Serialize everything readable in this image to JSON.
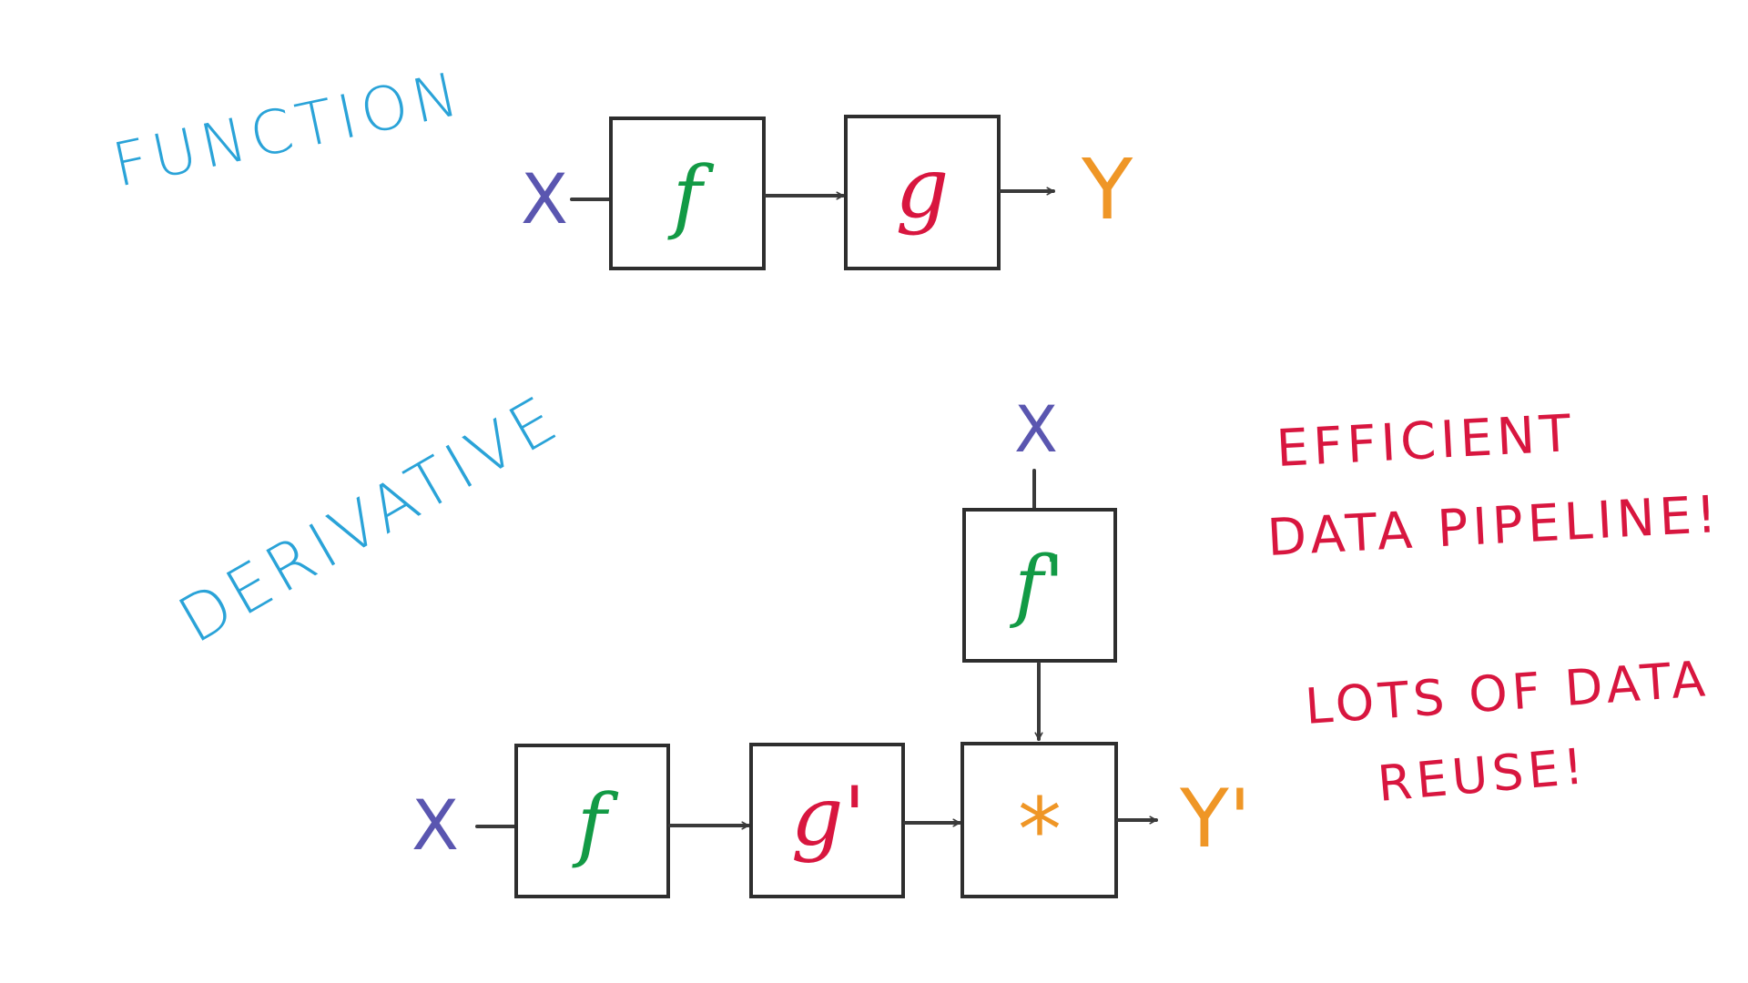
{
  "colors": {
    "heading": "#2aa3d8",
    "input_x": "#5a56b0",
    "output_y": "#ef9626",
    "f_green": "#129a45",
    "g_red": "#d8163f",
    "note_red": "#d8163f",
    "box_stroke": "#2e2e2e"
  },
  "function": {
    "heading": "FUNCTION",
    "input": "X",
    "box_f": "f",
    "box_g": "g",
    "output": "Y"
  },
  "derivative": {
    "heading": "DERIVATIVE",
    "input_top": "X",
    "box_f_prime": "f'",
    "input": "X",
    "box_f": "f",
    "box_g_prime": "g'",
    "box_mult": "*",
    "output": "Y'"
  },
  "notes": {
    "note1_line1": "EFFICIENT",
    "note1_line2": "DATA PIPELINE!",
    "note2_line1": "LOTS OF DATA",
    "note2_line2": "REUSE!"
  }
}
